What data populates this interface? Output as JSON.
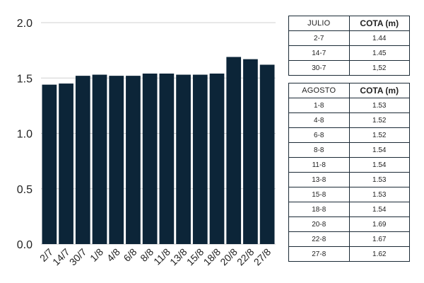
{
  "chart_data": {
    "type": "bar",
    "categories": [
      "2/7",
      "14/7",
      "30/7",
      "1/8",
      "4/8",
      "6/8",
      "8/8",
      "11/8",
      "13/8",
      "15/8",
      "18/8",
      "20/8",
      "22/8",
      "27/8"
    ],
    "values": [
      1.44,
      1.45,
      1.52,
      1.53,
      1.52,
      1.52,
      1.54,
      1.54,
      1.53,
      1.53,
      1.54,
      1.69,
      1.67,
      1.62
    ],
    "yticks": [
      "0.0",
      "0.5",
      "1.0",
      "1.5",
      "2.0"
    ],
    "ylim": [
      0,
      2.0
    ],
    "grid": true,
    "bar_color": "#0c2538",
    "title": "",
    "xlabel": "",
    "ylabel": ""
  },
  "tables": [
    {
      "header": [
        "JULIO",
        "COTA (m)"
      ],
      "rows": [
        [
          "2-7",
          "1.44"
        ],
        [
          "14-7",
          "1.45"
        ],
        [
          "30-7",
          "1,52"
        ]
      ]
    },
    {
      "header": [
        "AGOSTO",
        "COTA (m)"
      ],
      "rows": [
        [
          "1-8",
          "1.53"
        ],
        [
          "4-8",
          "1.52"
        ],
        [
          "6-8",
          "1.52"
        ],
        [
          "8-8",
          "1.54"
        ],
        [
          "11-8",
          "1.54"
        ],
        [
          "13-8",
          "1.53"
        ],
        [
          "15-8",
          "1.53"
        ],
        [
          "18-8",
          "1.54"
        ],
        [
          "20-8",
          "1.69"
        ],
        [
          "22-8",
          "1.67"
        ],
        [
          "27-8",
          "1.62"
        ]
      ]
    }
  ]
}
